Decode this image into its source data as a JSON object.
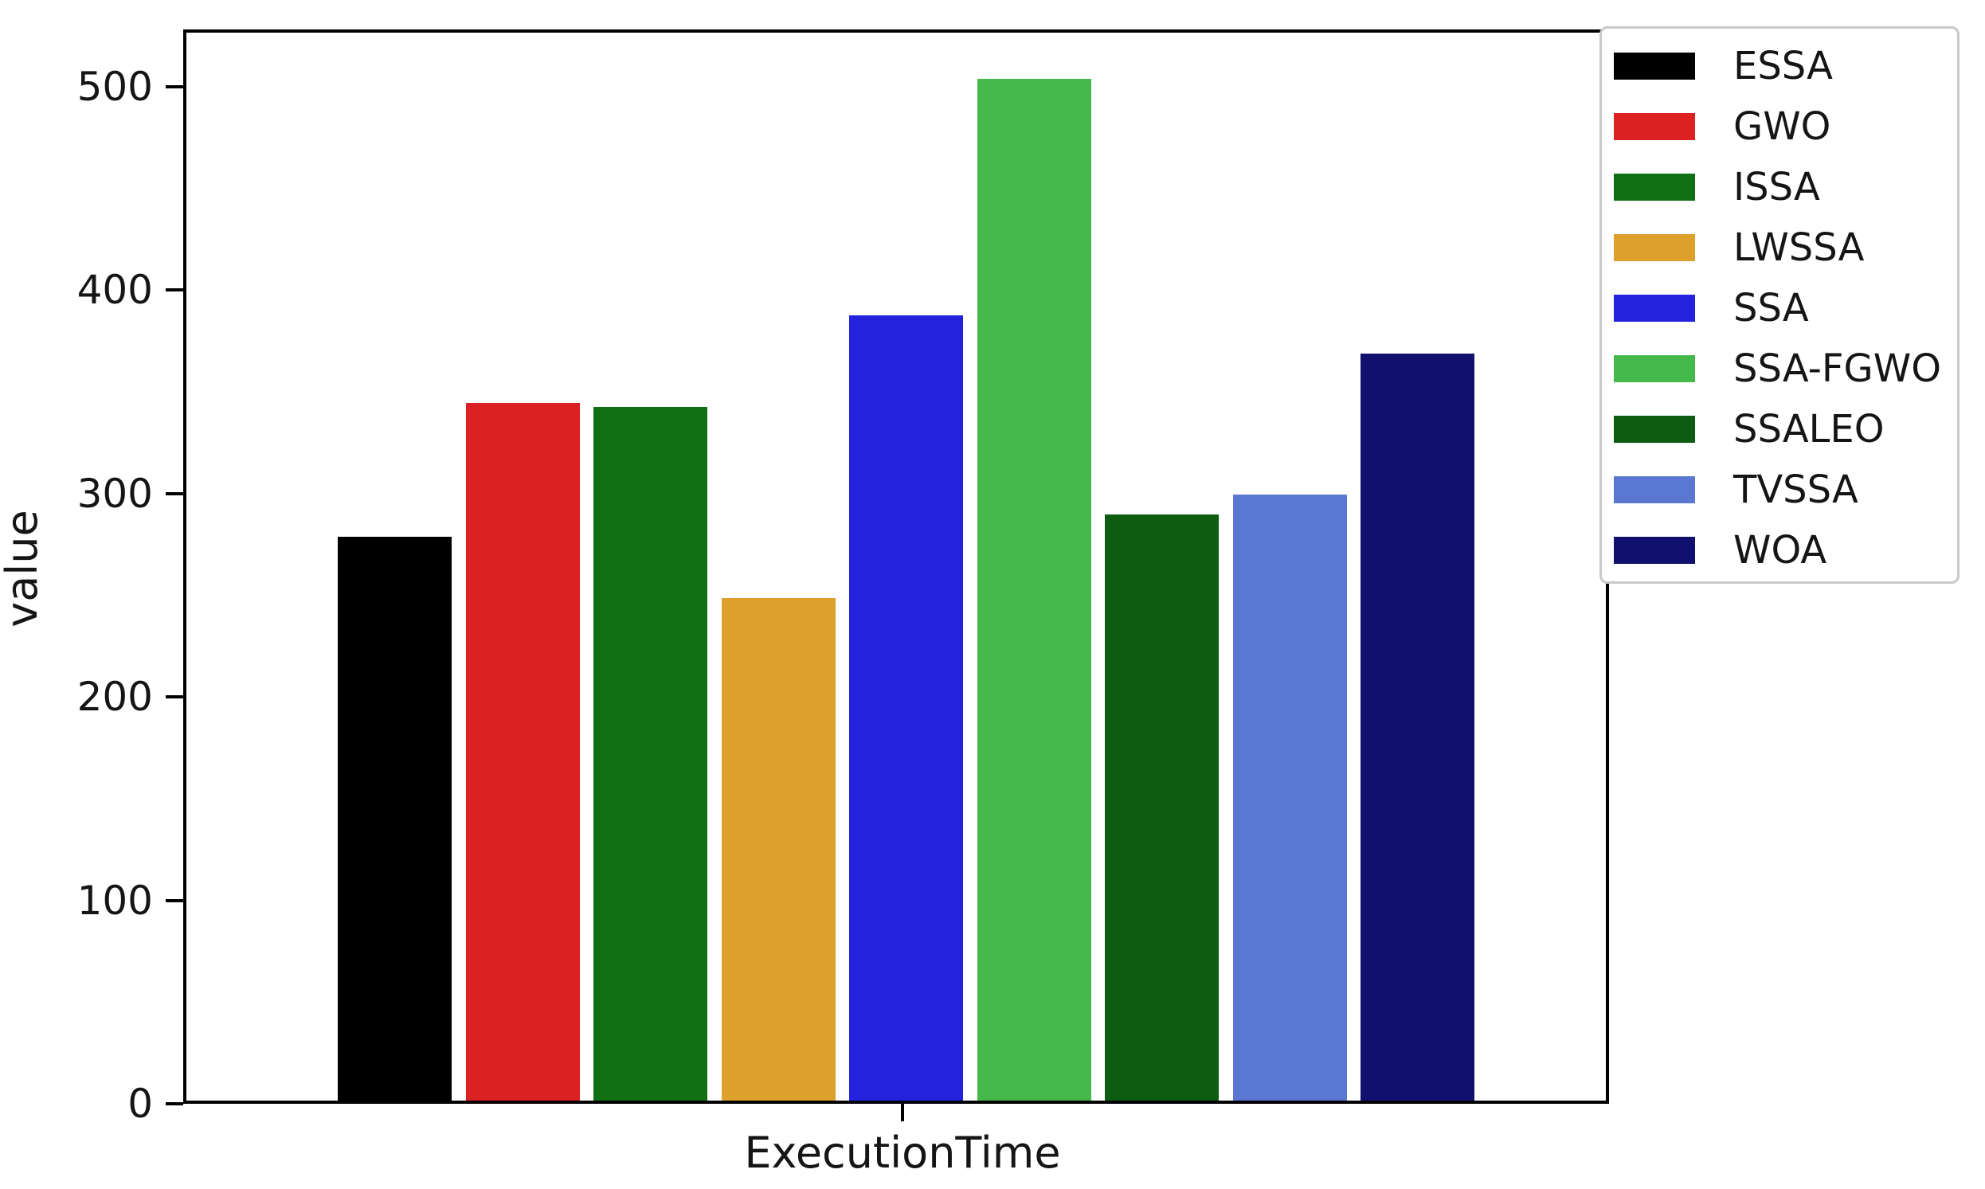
{
  "chart_data": {
    "type": "bar",
    "title": "",
    "xlabel": "",
    "ylabel": "value",
    "categories": [
      "ExecutionTime"
    ],
    "series": [
      {
        "name": "ESSA",
        "color": "#000000",
        "values": [
          277
        ]
      },
      {
        "name": "GWO",
        "color": "#dc2123",
        "values": [
          343
        ]
      },
      {
        "name": "ISSA",
        "color": "#106e14",
        "values": [
          341
        ]
      },
      {
        "name": "LWSSA",
        "color": "#dda02a",
        "values": [
          247
        ]
      },
      {
        "name": "SSA",
        "color": "#2522de",
        "values": [
          386
        ]
      },
      {
        "name": "SSA-FGWO",
        "color": "#45b84c",
        "values": [
          502
        ]
      },
      {
        "name": "SSALEO",
        "color": "#0e5c12",
        "values": [
          288
        ]
      },
      {
        "name": "TVSSA",
        "color": "#5a78d2",
        "values": [
          298
        ]
      },
      {
        "name": "WOA",
        "color": "#12106e",
        "values": [
          367
        ]
      }
    ],
    "yticks": [
      0,
      100,
      200,
      300,
      400,
      500
    ],
    "ylim": [
      0,
      528
    ],
    "grid": false,
    "legend_position": "upper right",
    "axes_background": "#ffffff",
    "spine_color": "#000000"
  }
}
